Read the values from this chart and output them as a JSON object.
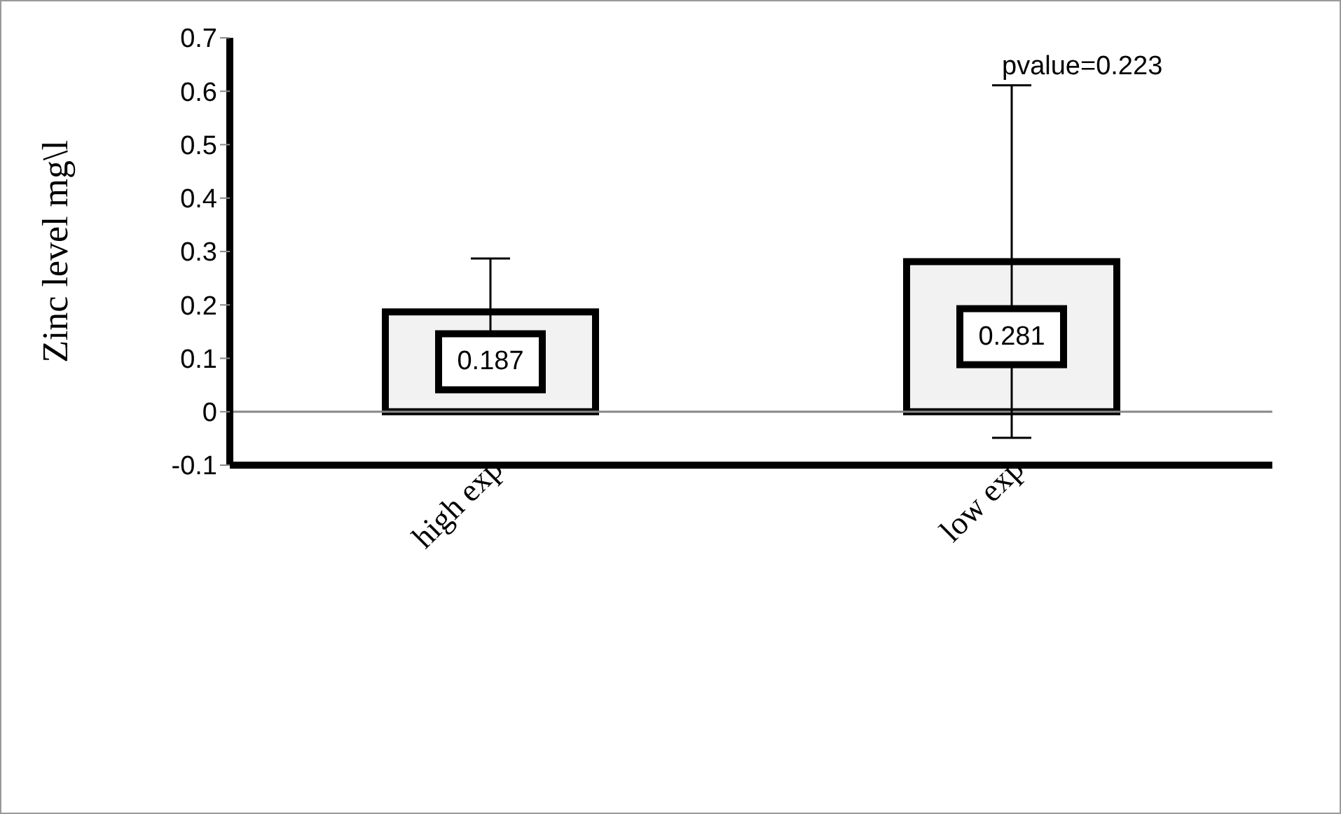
{
  "chart_data": {
    "type": "bar",
    "ylabel": "Zinc  level  mg\\l",
    "categories": [
      "high exp",
      "low exp"
    ],
    "values": [
      0.187,
      0.281
    ],
    "errors": [
      0.1,
      0.33
    ],
    "color": "#f2f2f2",
    "data_labels": true,
    "ylim": [
      -0.1,
      0.7
    ],
    "yticks": [
      -0.1,
      0,
      0.1,
      0.2,
      0.3,
      0.4,
      0.5,
      0.6,
      0.7
    ],
    "grid": false,
    "legend": false,
    "annotations": [
      {
        "text": "pvalue=0.223",
        "x": "low exp",
        "y": 0.611
      }
    ]
  }
}
